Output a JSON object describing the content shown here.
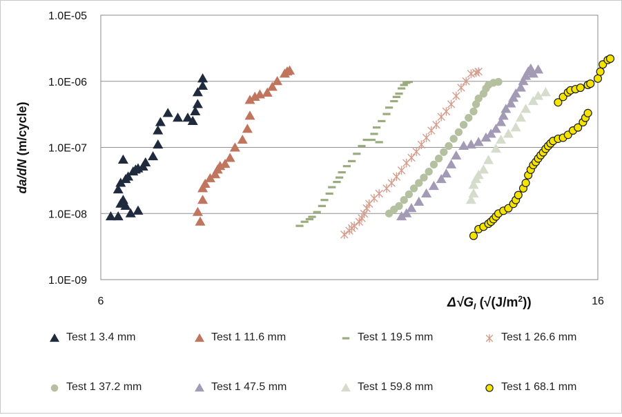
{
  "chart_data": {
    "type": "scatter",
    "title": "",
    "ylabel": "da/dN (m/cycle)",
    "xlabel": "Δ√G_I (√(J/m²))",
    "xlabel_parts": {
      "prefix": "Δ√",
      "var": "G",
      "sub": "I",
      "open": " (√(J/m",
      "sup": "2",
      "close": "))"
    },
    "ylabel_parts": {
      "var": "da/dN",
      "rest": " (m/cycle)"
    },
    "xlim": [
      6,
      16
    ],
    "ylim": [
      1e-09,
      1e-05
    ],
    "y_scale": "log",
    "grid": true,
    "legend_position": "bottom",
    "x_tick_labels": [
      "6",
      "16"
    ],
    "y_tick_labels": [
      "1.0E-09",
      "1.0E-08",
      "1.0E-07",
      "1.0E-06",
      "1.0E-05"
    ],
    "series": [
      {
        "name": "Test 1 3.4 mm",
        "marker": "triangle",
        "color": "#1f2a3c",
        "stroke": "#1f2a3c",
        "points": [
          [
            6.2,
            9e-09
          ],
          [
            6.35,
            9e-09
          ],
          [
            6.4,
            1.4e-08
          ],
          [
            6.45,
            1.6e-08
          ],
          [
            6.5,
            1.3e-08
          ],
          [
            6.6,
            1e-08
          ],
          [
            6.75,
            1.1e-08
          ],
          [
            6.35,
            2.3e-08
          ],
          [
            6.4,
            2.9e-08
          ],
          [
            6.5,
            3.3e-08
          ],
          [
            6.55,
            3.6e-08
          ],
          [
            6.65,
            4.3e-08
          ],
          [
            6.7,
            4.6e-08
          ],
          [
            6.75,
            4.8e-08
          ],
          [
            6.85,
            5.1e-08
          ],
          [
            6.45,
            6.5e-08
          ],
          [
            6.9,
            5.9e-08
          ],
          [
            7.05,
            7.3e-08
          ],
          [
            7.15,
            1.1e-07
          ],
          [
            7.15,
            1.8e-07
          ],
          [
            7.2,
            2.4e-07
          ],
          [
            7.35,
            3.3e-07
          ],
          [
            7.55,
            2.8e-07
          ],
          [
            7.75,
            2.8e-07
          ],
          [
            7.85,
            2.5e-07
          ],
          [
            7.9,
            3.5e-07
          ],
          [
            7.95,
            4.5e-07
          ],
          [
            7.95,
            6.8e-07
          ],
          [
            8.05,
            8.5e-07
          ],
          [
            8.05,
            1.1e-06
          ]
        ]
      },
      {
        "name": "Test 1 11.6 mm",
        "marker": "triangle",
        "color": "#c0755e",
        "stroke": "#c0755e",
        "points": [
          [
            8.0,
            7.5e-09
          ],
          [
            7.95,
            1.05e-08
          ],
          [
            8.05,
            1.6e-08
          ],
          [
            8.05,
            2.4e-08
          ],
          [
            8.1,
            2.8e-08
          ],
          [
            8.2,
            3.4e-08
          ],
          [
            8.3,
            3.9e-08
          ],
          [
            8.35,
            4.6e-08
          ],
          [
            8.4,
            5.2e-08
          ],
          [
            8.5,
            5.6e-08
          ],
          [
            8.6,
            6.9e-08
          ],
          [
            8.7,
            9.9e-08
          ],
          [
            8.85,
            1.3e-07
          ],
          [
            8.95,
            1.9e-07
          ],
          [
            9.0,
            3e-07
          ],
          [
            9.0,
            5.2e-07
          ],
          [
            9.1,
            5.8e-07
          ],
          [
            9.2,
            6.3e-07
          ],
          [
            9.35,
            6.7e-07
          ],
          [
            9.45,
            8.2e-07
          ],
          [
            9.55,
            1e-06
          ],
          [
            9.7,
            1.3e-06
          ],
          [
            9.75,
            1.4e-06
          ],
          [
            9.8,
            1.45e-06
          ]
        ]
      },
      {
        "name": "Test 1 19.5 mm",
        "marker": "dash",
        "color": "#9aab7e",
        "stroke": "#9aab7e",
        "points": [
          [
            10.0,
            6.5e-09
          ],
          [
            10.1,
            7.5e-09
          ],
          [
            10.2,
            8.2e-09
          ],
          [
            10.25,
            8.9e-09
          ],
          [
            10.35,
            1.05e-08
          ],
          [
            10.45,
            1.3e-08
          ],
          [
            10.5,
            1.6e-08
          ],
          [
            10.6,
            2e-08
          ],
          [
            10.65,
            2.5e-08
          ],
          [
            10.75,
            3e-08
          ],
          [
            10.8,
            3.5e-08
          ],
          [
            10.85,
            4.2e-08
          ],
          [
            10.95,
            5.2e-08
          ],
          [
            11.05,
            6.2e-08
          ],
          [
            11.15,
            8e-08
          ],
          [
            11.25,
            1.05e-07
          ],
          [
            11.35,
            1.3e-07
          ],
          [
            11.45,
            1.3e-07
          ],
          [
            11.6,
            1.2e-07
          ],
          [
            11.5,
            1.6e-07
          ],
          [
            11.55,
            2e-07
          ],
          [
            11.65,
            2.5e-07
          ],
          [
            11.75,
            3.2e-07
          ],
          [
            11.8,
            4e-07
          ],
          [
            11.9,
            5e-07
          ],
          [
            11.95,
            5.8e-07
          ],
          [
            12.0,
            6.5e-07
          ],
          [
            12.05,
            7.8e-07
          ],
          [
            12.1,
            8.8e-07
          ],
          [
            12.15,
            9.5e-07
          ],
          [
            12.2,
            9.8e-07
          ]
        ]
      },
      {
        "name": "Test 1 26.6 mm",
        "marker": "asterisk",
        "color": "#d59c8c",
        "stroke": "#d59c8c",
        "points": [
          [
            10.9,
            4.8e-09
          ],
          [
            11.0,
            5.5e-09
          ],
          [
            11.05,
            6e-09
          ],
          [
            11.1,
            6.5e-09
          ],
          [
            11.2,
            7.5e-09
          ],
          [
            11.25,
            8.5e-09
          ],
          [
            11.3,
            9.9e-09
          ],
          [
            11.35,
            1.2e-08
          ],
          [
            11.4,
            1.4e-08
          ],
          [
            11.5,
            1.7e-08
          ],
          [
            11.6,
            2e-08
          ],
          [
            11.75,
            2.4e-08
          ],
          [
            11.85,
            2.9e-08
          ],
          [
            11.95,
            3.6e-08
          ],
          [
            12.05,
            4.5e-08
          ],
          [
            12.15,
            5.8e-08
          ],
          [
            12.25,
            7e-08
          ],
          [
            12.35,
            8.6e-08
          ],
          [
            12.45,
            1.1e-07
          ],
          [
            12.55,
            1.4e-07
          ],
          [
            12.65,
            1.8e-07
          ],
          [
            12.75,
            2.2e-07
          ],
          [
            12.85,
            2.9e-07
          ],
          [
            12.95,
            3.5e-07
          ],
          [
            13.05,
            4.5e-07
          ],
          [
            13.15,
            6e-07
          ],
          [
            13.25,
            8e-07
          ],
          [
            13.35,
            1e-06
          ],
          [
            13.45,
            1.3e-06
          ],
          [
            13.55,
            1.35e-06
          ],
          [
            13.6,
            1.4e-06
          ]
        ]
      },
      {
        "name": "Test 1 37.2 mm",
        "marker": "circle",
        "color": "#b4c0a0",
        "stroke": "#b4c0a0",
        "points": [
          [
            11.8,
            1e-08
          ],
          [
            11.9,
            1.15e-08
          ],
          [
            12.0,
            1.3e-08
          ],
          [
            12.1,
            1.6e-08
          ],
          [
            12.2,
            1.95e-08
          ],
          [
            12.3,
            2.4e-08
          ],
          [
            12.4,
            2.9e-08
          ],
          [
            12.5,
            3.5e-08
          ],
          [
            12.6,
            4.3e-08
          ],
          [
            12.7,
            5.5e-08
          ],
          [
            12.8,
            6.8e-08
          ],
          [
            12.9,
            8.5e-08
          ],
          [
            13.0,
            1.05e-07
          ],
          [
            13.1,
            1.35e-07
          ],
          [
            13.2,
            1.7e-07
          ],
          [
            13.3,
            2.2e-07
          ],
          [
            13.4,
            2.8e-07
          ],
          [
            13.5,
            3.5e-07
          ],
          [
            13.55,
            4.5e-07
          ],
          [
            13.6,
            5.5e-07
          ],
          [
            13.7,
            6.5e-07
          ],
          [
            13.75,
            7.8e-07
          ],
          [
            13.8,
            8.8e-07
          ],
          [
            13.9,
            9.5e-07
          ],
          [
            14.0,
            9.8e-07
          ]
        ]
      },
      {
        "name": "Test 1 47.5 mm",
        "marker": "triangle",
        "color": "#a39bb5",
        "stroke": "#a39bb5",
        "points": [
          [
            12.05,
            9e-09
          ],
          [
            12.15,
            1e-08
          ],
          [
            12.25,
            1.2e-08
          ],
          [
            12.4,
            1.5e-08
          ],
          [
            12.55,
            2e-08
          ],
          [
            12.7,
            2.6e-08
          ],
          [
            12.85,
            3.3e-08
          ],
          [
            12.95,
            4e-08
          ],
          [
            13.05,
            5.5e-08
          ],
          [
            13.15,
            7.5e-08
          ],
          [
            13.3,
            1.05e-07
          ],
          [
            13.45,
            1.1e-07
          ],
          [
            13.6,
            1.2e-07
          ],
          [
            13.75,
            1.4e-07
          ],
          [
            13.85,
            1.6e-07
          ],
          [
            13.95,
            1.9e-07
          ],
          [
            14.05,
            2.4e-07
          ],
          [
            14.1,
            3e-07
          ],
          [
            14.15,
            3.8e-07
          ],
          [
            14.25,
            4.6e-07
          ],
          [
            14.3,
            5.6e-07
          ],
          [
            14.35,
            6.5e-07
          ],
          [
            14.45,
            8e-07
          ],
          [
            14.5,
            1e-06
          ],
          [
            14.55,
            1.2e-06
          ],
          [
            14.6,
            1.4e-06
          ],
          [
            14.65,
            1.55e-06
          ],
          [
            14.8,
            1.5e-06
          ],
          [
            14.7,
            1.3e-06
          ]
        ]
      },
      {
        "name": "Test 1 59.8 mm",
        "marker": "triangle",
        "color": "#d6dccb",
        "stroke": "#d6dccb",
        "points": [
          [
            13.45,
            1.6e-08
          ],
          [
            13.5,
            2e-08
          ],
          [
            13.5,
            2.7e-08
          ],
          [
            13.55,
            3.3e-08
          ],
          [
            13.6,
            3.8e-08
          ],
          [
            13.7,
            4.6e-08
          ],
          [
            13.8,
            6.4e-08
          ],
          [
            13.95,
            9.5e-08
          ],
          [
            14.05,
            1.3e-07
          ],
          [
            14.2,
            1.6e-07
          ],
          [
            14.35,
            2e-07
          ],
          [
            14.45,
            2.8e-07
          ],
          [
            14.55,
            3.8e-07
          ],
          [
            14.7,
            5e-07
          ],
          [
            14.8,
            6e-07
          ],
          [
            14.95,
            6.8e-07
          ]
        ]
      },
      {
        "name": "Test 1 68.1 mm",
        "marker": "circle",
        "color": "#f5e400",
        "stroke": "#1a1a1a",
        "points": [
          [
            13.5,
            4.6e-09
          ],
          [
            13.6,
            5.8e-09
          ],
          [
            13.7,
            6.3e-09
          ],
          [
            13.8,
            7e-09
          ],
          [
            13.85,
            7.5e-09
          ],
          [
            13.9,
            8.2e-09
          ],
          [
            13.95,
            9e-09
          ],
          [
            14.0,
            1e-08
          ],
          [
            14.1,
            1.1e-08
          ],
          [
            14.2,
            1.2e-08
          ],
          [
            14.3,
            1.4e-08
          ],
          [
            14.35,
            1.6e-08
          ],
          [
            14.4,
            1.9e-08
          ],
          [
            14.5,
            2.4e-08
          ],
          [
            14.55,
            2.9e-08
          ],
          [
            14.6,
            3.8e-08
          ],
          [
            14.65,
            4.6e-08
          ],
          [
            14.7,
            5.4e-08
          ],
          [
            14.75,
            6e-08
          ],
          [
            14.8,
            6.8e-08
          ],
          [
            14.85,
            7.6e-08
          ],
          [
            14.9,
            8.4e-08
          ],
          [
            14.95,
            9.5e-08
          ],
          [
            15.0,
            1.05e-07
          ],
          [
            15.05,
            1.15e-07
          ],
          [
            15.1,
            1.25e-07
          ],
          [
            15.2,
            1.35e-07
          ],
          [
            15.3,
            1.4e-07
          ],
          [
            15.4,
            1.55e-07
          ],
          [
            15.5,
            1.8e-07
          ],
          [
            15.6,
            2e-07
          ],
          [
            15.7,
            2.4e-07
          ],
          [
            15.75,
            2.8e-07
          ],
          [
            15.8,
            3.3e-07
          ],
          [
            15.2,
            4.8e-07
          ],
          [
            15.3,
            5.8e-07
          ],
          [
            15.4,
            6.8e-07
          ],
          [
            15.45,
            7.3e-07
          ],
          [
            15.55,
            7.6e-07
          ],
          [
            15.65,
            8e-07
          ],
          [
            15.8,
            8.8e-07
          ],
          [
            15.85,
            9.2e-07
          ],
          [
            16.0,
            1.1e-06
          ],
          [
            16.05,
            1.4e-06
          ],
          [
            16.1,
            1.8e-06
          ],
          [
            16.2,
            2.1e-06
          ],
          [
            16.25,
            2.2e-06
          ]
        ]
      }
    ]
  }
}
